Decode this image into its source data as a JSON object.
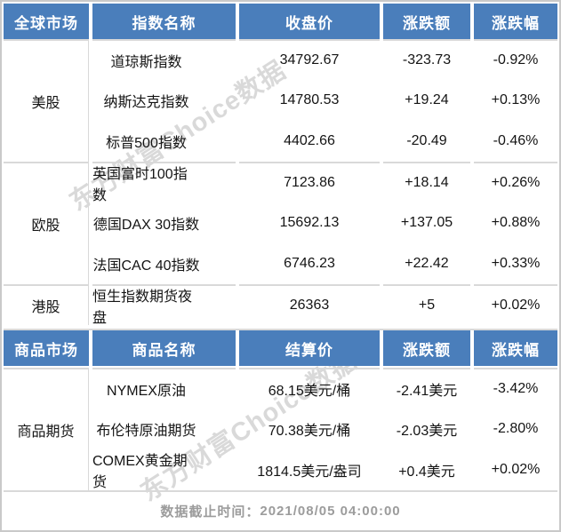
{
  "colors": {
    "header_bg": "#4A7EBB",
    "header_text": "#FFFFFF",
    "divider": "#D9D9D9",
    "footer_text": "#9C9C9C"
  },
  "watermark_text": "东方财富Choice数据",
  "index_table": {
    "headers": [
      "全球市场",
      "指数名称",
      "收盘价",
      "涨跌额",
      "涨跌幅"
    ],
    "sections": [
      {
        "market": "美股",
        "rows": [
          {
            "name": "道琼斯指数",
            "price": "34792.67",
            "change": "-323.73",
            "pct": "-0.92%"
          },
          {
            "name": "纳斯达克指数",
            "price": "14780.53",
            "change": "+19.24",
            "pct": "+0.13%"
          },
          {
            "name": "标普500指数",
            "price": "4402.66",
            "change": "-20.49",
            "pct": "-0.46%"
          }
        ]
      },
      {
        "market": "欧股",
        "rows": [
          {
            "name": "英国富时100指数",
            "price": "7123.86",
            "change": "+18.14",
            "pct": "+0.26%"
          },
          {
            "name": "德国DAX 30指数",
            "price": "15692.13",
            "change": "+137.05",
            "pct": "+0.88%"
          },
          {
            "name": "法国CAC 40指数",
            "price": "6746.23",
            "change": "+22.42",
            "pct": "+0.33%"
          }
        ]
      },
      {
        "market": "港股",
        "rows": [
          {
            "name": "恒生指数期货夜盘",
            "price": "26363",
            "change": "+5",
            "pct": "+0.02%"
          }
        ]
      }
    ]
  },
  "commodity_table": {
    "headers": [
      "商品市场",
      "商品名称",
      "结算价",
      "涨跌额",
      "涨跌幅"
    ],
    "sections": [
      {
        "market": "商品期货",
        "rows": [
          {
            "name": "NYMEX原油",
            "price": "68.15美元/桶",
            "change": "-2.41美元",
            "pct": "-3.42%"
          },
          {
            "name": "布伦特原油期货",
            "price": "70.38美元/桶",
            "change": "-2.03美元",
            "pct": "-2.80%"
          },
          {
            "name": "COMEX黄金期货",
            "price": "1814.5美元/盎司",
            "change": "+0.4美元",
            "pct": "+0.02%"
          }
        ]
      }
    ]
  },
  "footer": {
    "label": "数据截止时间：",
    "value": "2021/08/05  04:00:00"
  }
}
